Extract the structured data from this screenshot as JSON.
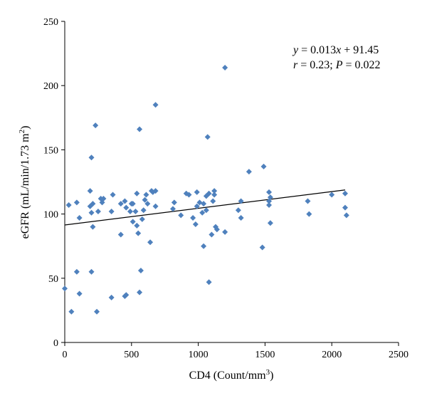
{
  "chart_data": {
    "type": "scatter",
    "xlabel": "CD4 (Count/mm",
    "xlabel_sup": "3",
    "xlabel_end": ")",
    "ylabel": "eGFR (mL/min/1.73 m",
    "ylabel_sup": "2",
    "ylabel_end": ")",
    "xlim": [
      0,
      2500
    ],
    "ylim": [
      0,
      250
    ],
    "xticks": [
      "0",
      "500",
      "1000",
      "1500",
      "2000",
      "2500"
    ],
    "yticks": [
      "0",
      "50",
      "100",
      "150",
      "200",
      "250"
    ],
    "grid": false,
    "marker": "diamond",
    "marker_color": "#4f81bd",
    "annotation": {
      "eq_y": "y",
      "eq_mid": " = 0.013",
      "eq_x": "x",
      "eq_end": " + 91.45",
      "stat_r": "r",
      "stat_mid": " = 0.23; ",
      "stat_p": "P",
      "stat_end": " = 0.022"
    },
    "trendline": {
      "slope": 0.013,
      "intercept": 91.45,
      "x_range": [
        0,
        2100
      ]
    },
    "points": [
      [
        0,
        42
      ],
      [
        30,
        107
      ],
      [
        50,
        24
      ],
      [
        90,
        55
      ],
      [
        90,
        109
      ],
      [
        110,
        38
      ],
      [
        110,
        97
      ],
      [
        190,
        106
      ],
      [
        190,
        118
      ],
      [
        200,
        55
      ],
      [
        200,
        101
      ],
      [
        200,
        144
      ],
      [
        210,
        90
      ],
      [
        210,
        108
      ],
      [
        230,
        169
      ],
      [
        240,
        24
      ],
      [
        250,
        102
      ],
      [
        270,
        112
      ],
      [
        280,
        109
      ],
      [
        290,
        112
      ],
      [
        350,
        35
      ],
      [
        350,
        102
      ],
      [
        360,
        115
      ],
      [
        420,
        84
      ],
      [
        420,
        108
      ],
      [
        450,
        36
      ],
      [
        450,
        110
      ],
      [
        460,
        37
      ],
      [
        460,
        105
      ],
      [
        490,
        102
      ],
      [
        500,
        108
      ],
      [
        510,
        108
      ],
      [
        510,
        94
      ],
      [
        530,
        102
      ],
      [
        540,
        116
      ],
      [
        540,
        91
      ],
      [
        550,
        85
      ],
      [
        560,
        39
      ],
      [
        560,
        166
      ],
      [
        570,
        56
      ],
      [
        580,
        96
      ],
      [
        590,
        103
      ],
      [
        600,
        111
      ],
      [
        610,
        115
      ],
      [
        620,
        108
      ],
      [
        640,
        78
      ],
      [
        650,
        118
      ],
      [
        660,
        117
      ],
      [
        680,
        185
      ],
      [
        680,
        106
      ],
      [
        680,
        118
      ],
      [
        810,
        104
      ],
      [
        820,
        109
      ],
      [
        870,
        99
      ],
      [
        910,
        116
      ],
      [
        930,
        115
      ],
      [
        960,
        97
      ],
      [
        980,
        92
      ],
      [
        990,
        106
      ],
      [
        990,
        117
      ],
      [
        1010,
        109
      ],
      [
        1030,
        101
      ],
      [
        1040,
        108
      ],
      [
        1040,
        75
      ],
      [
        1060,
        103
      ],
      [
        1060,
        114
      ],
      [
        1070,
        160
      ],
      [
        1080,
        47
      ],
      [
        1080,
        116
      ],
      [
        1100,
        84
      ],
      [
        1110,
        110
      ],
      [
        1120,
        115
      ],
      [
        1120,
        118
      ],
      [
        1130,
        90
      ],
      [
        1140,
        88
      ],
      [
        1200,
        214
      ],
      [
        1200,
        86
      ],
      [
        1300,
        103
      ],
      [
        1320,
        97
      ],
      [
        1320,
        110
      ],
      [
        1380,
        133
      ],
      [
        1480,
        74
      ],
      [
        1490,
        137
      ],
      [
        1530,
        107
      ],
      [
        1530,
        110
      ],
      [
        1530,
        117
      ],
      [
        1540,
        113
      ],
      [
        1540,
        93
      ],
      [
        1820,
        110
      ],
      [
        1830,
        100
      ],
      [
        2000,
        115
      ],
      [
        2100,
        116
      ],
      [
        2100,
        105
      ],
      [
        2110,
        99
      ]
    ]
  }
}
